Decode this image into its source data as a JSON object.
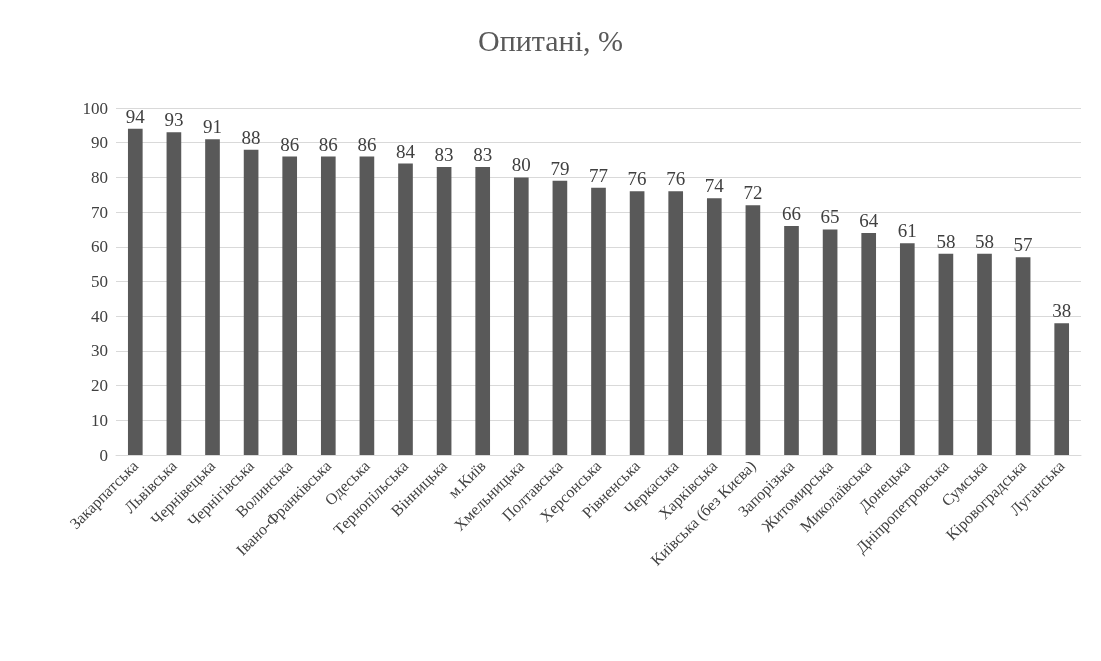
{
  "chart_data": {
    "type": "bar",
    "title": "Опитані, %",
    "categories": [
      "Закарпатська",
      "Львівська",
      "Чернівецька",
      "Чернігівська",
      "Волинська",
      "Івано-Франківська",
      "Одеська",
      "Тернопільська",
      "Вінницька",
      "м.Київ",
      "Хмельницька",
      "Полтавська",
      "Херсонська",
      "Рівненська",
      "Черкаська",
      "Харківська",
      "Київська (без Києва)",
      "Запорізька",
      "Житомирська",
      "Миколаївська",
      "Донецька",
      "Дніпропетровська",
      "Сумська",
      "Кіровоградська",
      "Луганська"
    ],
    "values": [
      94,
      93,
      91,
      88,
      86,
      86,
      86,
      84,
      83,
      83,
      80,
      79,
      77,
      76,
      76,
      74,
      72,
      66,
      65,
      64,
      61,
      58,
      58,
      57,
      38
    ],
    "color": "#595959",
    "ylim": [
      0,
      100
    ],
    "yticks": [
      0,
      10,
      20,
      30,
      40,
      50,
      60,
      70,
      80,
      90,
      100
    ],
    "grid": "y",
    "data_labels": true
  }
}
